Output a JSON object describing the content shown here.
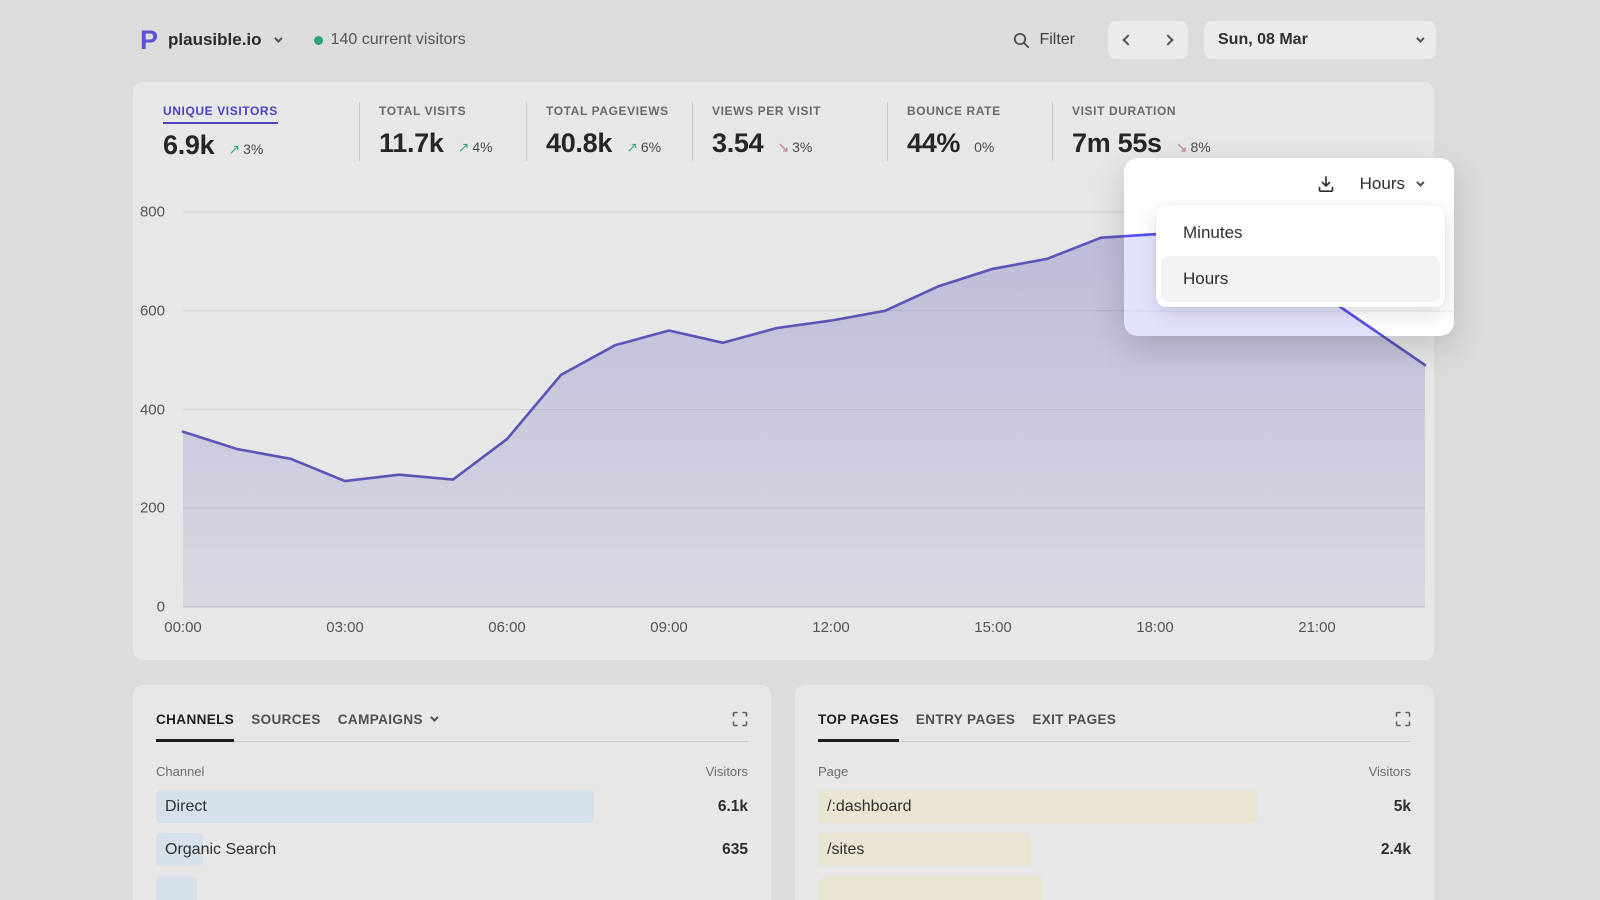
{
  "header": {
    "site_name": "plausible.io",
    "current_visitors": "140 current visitors",
    "filter_label": "Filter",
    "date_label": "Sun, 08 Mar"
  },
  "stats": [
    {
      "label": "UNIQUE VISITORS",
      "value": "6.9k",
      "change": "3%",
      "direction": "up",
      "active": true
    },
    {
      "label": "TOTAL VISITS",
      "value": "11.7k",
      "change": "4%",
      "direction": "up"
    },
    {
      "label": "TOTAL PAGEVIEWS",
      "value": "40.8k",
      "change": "6%",
      "direction": "up"
    },
    {
      "label": "VIEWS PER VISIT",
      "value": "3.54",
      "change": "3%",
      "direction": "down"
    },
    {
      "label": "BOUNCE RATE",
      "value": "44%",
      "change": "0%",
      "direction": "flat"
    },
    {
      "label": "VISIT DURATION",
      "value": "7m 55s",
      "change": "8%",
      "direction": "down"
    }
  ],
  "interval_selector": {
    "selected": "Hours",
    "options": [
      "Minutes",
      "Hours"
    ]
  },
  "chart_data": {
    "type": "area",
    "metric": "Unique visitors",
    "x": [
      "00:00",
      "01:00",
      "02:00",
      "03:00",
      "04:00",
      "05:00",
      "06:00",
      "07:00",
      "08:00",
      "09:00",
      "10:00",
      "11:00",
      "12:00",
      "13:00",
      "14:00",
      "15:00",
      "16:00",
      "17:00",
      "18:00",
      "19:00",
      "20:00",
      "21:00",
      "22:00",
      "23:00"
    ],
    "values": [
      355,
      320,
      300,
      255,
      268,
      258,
      340,
      470,
      530,
      560,
      535,
      565,
      580,
      600,
      650,
      685,
      705,
      748,
      755,
      735,
      695,
      640,
      565,
      490
    ],
    "ylim": [
      0,
      800
    ],
    "yticks": [
      0,
      200,
      400,
      600,
      800
    ],
    "xticks": [
      "00:00",
      "03:00",
      "06:00",
      "09:00",
      "12:00",
      "15:00",
      "18:00",
      "21:00"
    ],
    "grid": "horizontal",
    "legend": "none",
    "line_color": "#5850ec"
  },
  "cards": {
    "channels": {
      "tabs": [
        {
          "label": "CHANNELS",
          "active": true
        },
        {
          "label": "SOURCES"
        },
        {
          "label": "CAMPAIGNS",
          "chevron": true
        }
      ],
      "columns": {
        "left": "Channel",
        "right": "Visitors"
      },
      "rows": [
        {
          "label": "Direct",
          "value": "6.1k",
          "bar_pct": 74
        },
        {
          "label": "Organic Search",
          "value": "635",
          "bar_pct": 8
        }
      ],
      "partial_bar_pct": 7,
      "bar_color": "#d5e0ea"
    },
    "pages": {
      "tabs": [
        {
          "label": "TOP PAGES",
          "active": true
        },
        {
          "label": "ENTRY PAGES"
        },
        {
          "label": "EXIT PAGES"
        }
      ],
      "columns": {
        "left": "Page",
        "right": "Visitors"
      },
      "rows": [
        {
          "label": "/:dashboard",
          "value": "5k",
          "bar_pct": 74
        },
        {
          "label": "/sites",
          "value": "2.4k",
          "bar_pct": 36
        }
      ],
      "partial_bar_pct": 38,
      "bar_color": "#eae4d2"
    }
  },
  "colors": {
    "page_bg": "#dcdcdc",
    "card_bg": "#e7e7e7",
    "accent_purple": "#4d42c0",
    "chart_line_dim": "#5b55b8",
    "chart_line_bright": "#5850ec",
    "positive_green": "#3aa981",
    "negative_red": "#c4808d",
    "live_dot_green": "#2fa37c",
    "channels_bar": "#d5e0ea",
    "pages_bar": "#eae4d2"
  }
}
